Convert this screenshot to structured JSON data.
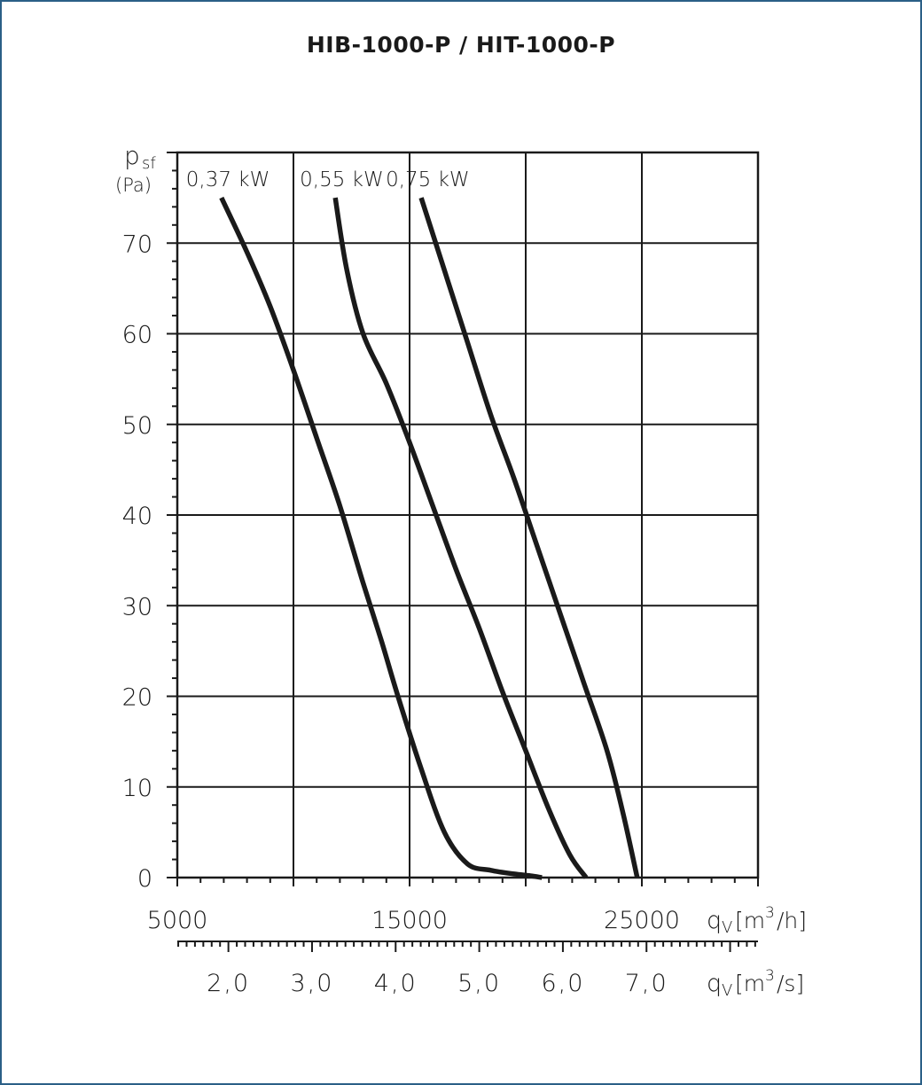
{
  "chart_data": {
    "type": "line",
    "title": "HIB-1000-P / HIT-1000-P",
    "ylabel": "p",
    "ylabel_sub": "sf",
    "yunit": "(Pa)",
    "xlabel": "q",
    "xlabel_sub": "V",
    "xunit_h": "[m³/h]",
    "xunit_s": "[m³/s]",
    "xunit_h_parts": [
      "[m",
      "3",
      "/h]"
    ],
    "xunit_s_parts": [
      "[m",
      "3",
      "/s]"
    ],
    "xlim": [
      5000,
      30000
    ],
    "ylim": [
      0,
      80
    ],
    "grid": true,
    "y_ticks": [
      0,
      10,
      20,
      30,
      40,
      50,
      60,
      70
    ],
    "y_tick_labels": [
      "0",
      "10",
      "20",
      "30",
      "40",
      "50",
      "60",
      "70"
    ],
    "x_ticks": [
      5000,
      15000,
      25000
    ],
    "x_tick_labels": [
      "5000",
      "15000",
      "25000"
    ],
    "x_grid": [
      5000,
      10000,
      15000,
      20000,
      25000,
      30000
    ],
    "x2_ticks": [
      2.0,
      3.0,
      4.0,
      5.0,
      6.0,
      7.0
    ],
    "x2_tick_labels": [
      "2,0",
      "3,0",
      "4,0",
      "5,0",
      "6,0",
      "7,0"
    ],
    "series": [
      {
        "name": "0,37 kW",
        "x": [
          6900,
          8000,
          9000,
          10000,
          11000,
          12000,
          13000,
          13800,
          14500,
          15500,
          16500,
          17500,
          18500,
          19500,
          20200,
          20700
        ],
        "y": [
          75,
          69,
          63,
          56,
          48.5,
          41,
          32.5,
          26,
          20,
          12,
          5,
          1.5,
          0.8,
          0.4,
          0.2,
          0
        ]
      },
      {
        "name": "0,55 kW",
        "x": [
          11800,
          12300,
          13000,
          14000,
          15000,
          16000,
          17000,
          18000,
          19000,
          20000,
          21000,
          21900,
          22600
        ],
        "y": [
          75,
          67,
          60,
          54.5,
          48,
          41,
          34,
          27.5,
          20.5,
          14,
          7.5,
          2.5,
          0
        ]
      },
      {
        "name": "0,75 kW",
        "x": [
          15500,
          16500,
          17500,
          18500,
          19500,
          20500,
          21500,
          22500,
          23500,
          24200,
          24800
        ],
        "y": [
          75,
          67,
          59,
          51,
          44,
          36.5,
          29,
          21.5,
          14,
          7,
          0
        ]
      }
    ]
  }
}
